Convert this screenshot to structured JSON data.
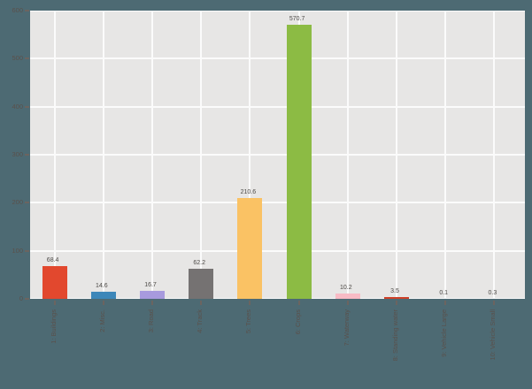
{
  "colors": {
    "figure_bg": "#4d6a73",
    "plot_bg": "#e7e6e5",
    "grid": "#fbfbfb",
    "tick_label": "#5a514c",
    "tick_mark": "#6b6460",
    "value_label": "#4d4a47"
  },
  "chart_data": {
    "type": "bar",
    "title": "",
    "xlabel": "",
    "ylabel": "",
    "categories": [
      "1: Buildings",
      "2: Misc.",
      "3: Road",
      "4: Track",
      "5: Trees",
      "6: Crops",
      "7: Waterway",
      "8: Standing water",
      "9: Vehicle Large",
      "10: Vehicle Small"
    ],
    "values": [
      68.4,
      14.6,
      16.7,
      62.2,
      210.6,
      570.7,
      10.2,
      3.5,
      0.1,
      0.3
    ],
    "value_labels": [
      "68.4",
      "14.6",
      "16.7",
      "62.2",
      "210.6",
      "570.7",
      "10.2",
      "3.5",
      "0.1",
      "0.3"
    ],
    "bar_colors": [
      "#e2482e",
      "#3d87b9",
      "#a79ade",
      "#757272",
      "#fac264",
      "#8cbb44",
      "#f8bbc5",
      "#cf4027",
      "#9a9a9a",
      "#9a9a9a"
    ],
    "ylim": [
      0,
      600
    ],
    "yticks": [
      0,
      100,
      200,
      300,
      400,
      500,
      600
    ],
    "grid": true,
    "legend": false
  }
}
